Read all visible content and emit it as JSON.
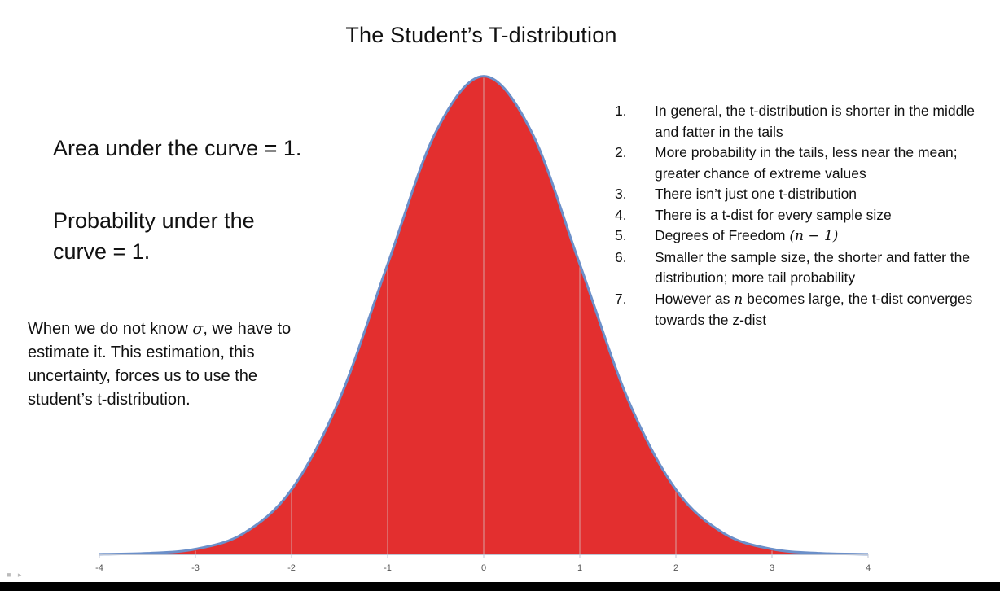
{
  "title": "The Student’s T-distribution",
  "notes": {
    "area": "Area under the curve = 1.",
    "probability": "Probability under the curve = 1.",
    "sigma_intro": "When we do not know ",
    "sigma_symbol": "σ",
    "sigma_rest": ", we have to estimate it. This estimation, this uncertainty, forces us to use the student’s t-distribution."
  },
  "points": [
    {
      "num": "1.",
      "text": "In general, the t-distribution is shorter in the middle and fatter in the tails"
    },
    {
      "num": "2.",
      "text": "More probability in the tails, less near the mean; greater chance of extreme values"
    },
    {
      "num": "3.",
      "text": "There isn’t just one t-distribution"
    },
    {
      "num": "4.",
      "text": "There is a t-dist for every sample size"
    },
    {
      "num": "5.",
      "text": "Degrees of Freedom ",
      "math": "(n − 1)"
    },
    {
      "num": "6.",
      "text": "Smaller the sample size, the shorter and fatter the distribution; more tail probability"
    },
    {
      "num": "7.",
      "text": "However as ",
      "math": "n",
      "text_after": " becomes large, the t-dist converges towards the z-dist"
    }
  ],
  "chart_data": {
    "type": "area",
    "x": [
      -4,
      -3.5,
      -3,
      -2.5,
      -2,
      -1.5,
      -1,
      -0.5,
      0,
      0.5,
      1,
      1.5,
      2,
      2.5,
      3,
      3.5,
      4
    ],
    "y": [
      0.0001,
      0.0009,
      0.0044,
      0.0175,
      0.054,
      0.1295,
      0.242,
      0.3521,
      0.3989,
      0.3521,
      0.242,
      0.1295,
      0.054,
      0.0175,
      0.0044,
      0.0009,
      0.0001
    ],
    "xlim": [
      -4,
      4
    ],
    "ylim": [
      0,
      0.4
    ],
    "xticks": [
      "-4",
      "-3",
      "-2",
      "-1",
      "0",
      "1",
      "2",
      "3",
      "4"
    ],
    "fill_color": "#e32f2f",
    "line_color": "#6b8fc9",
    "grid": "vertical lines at integer x values"
  }
}
